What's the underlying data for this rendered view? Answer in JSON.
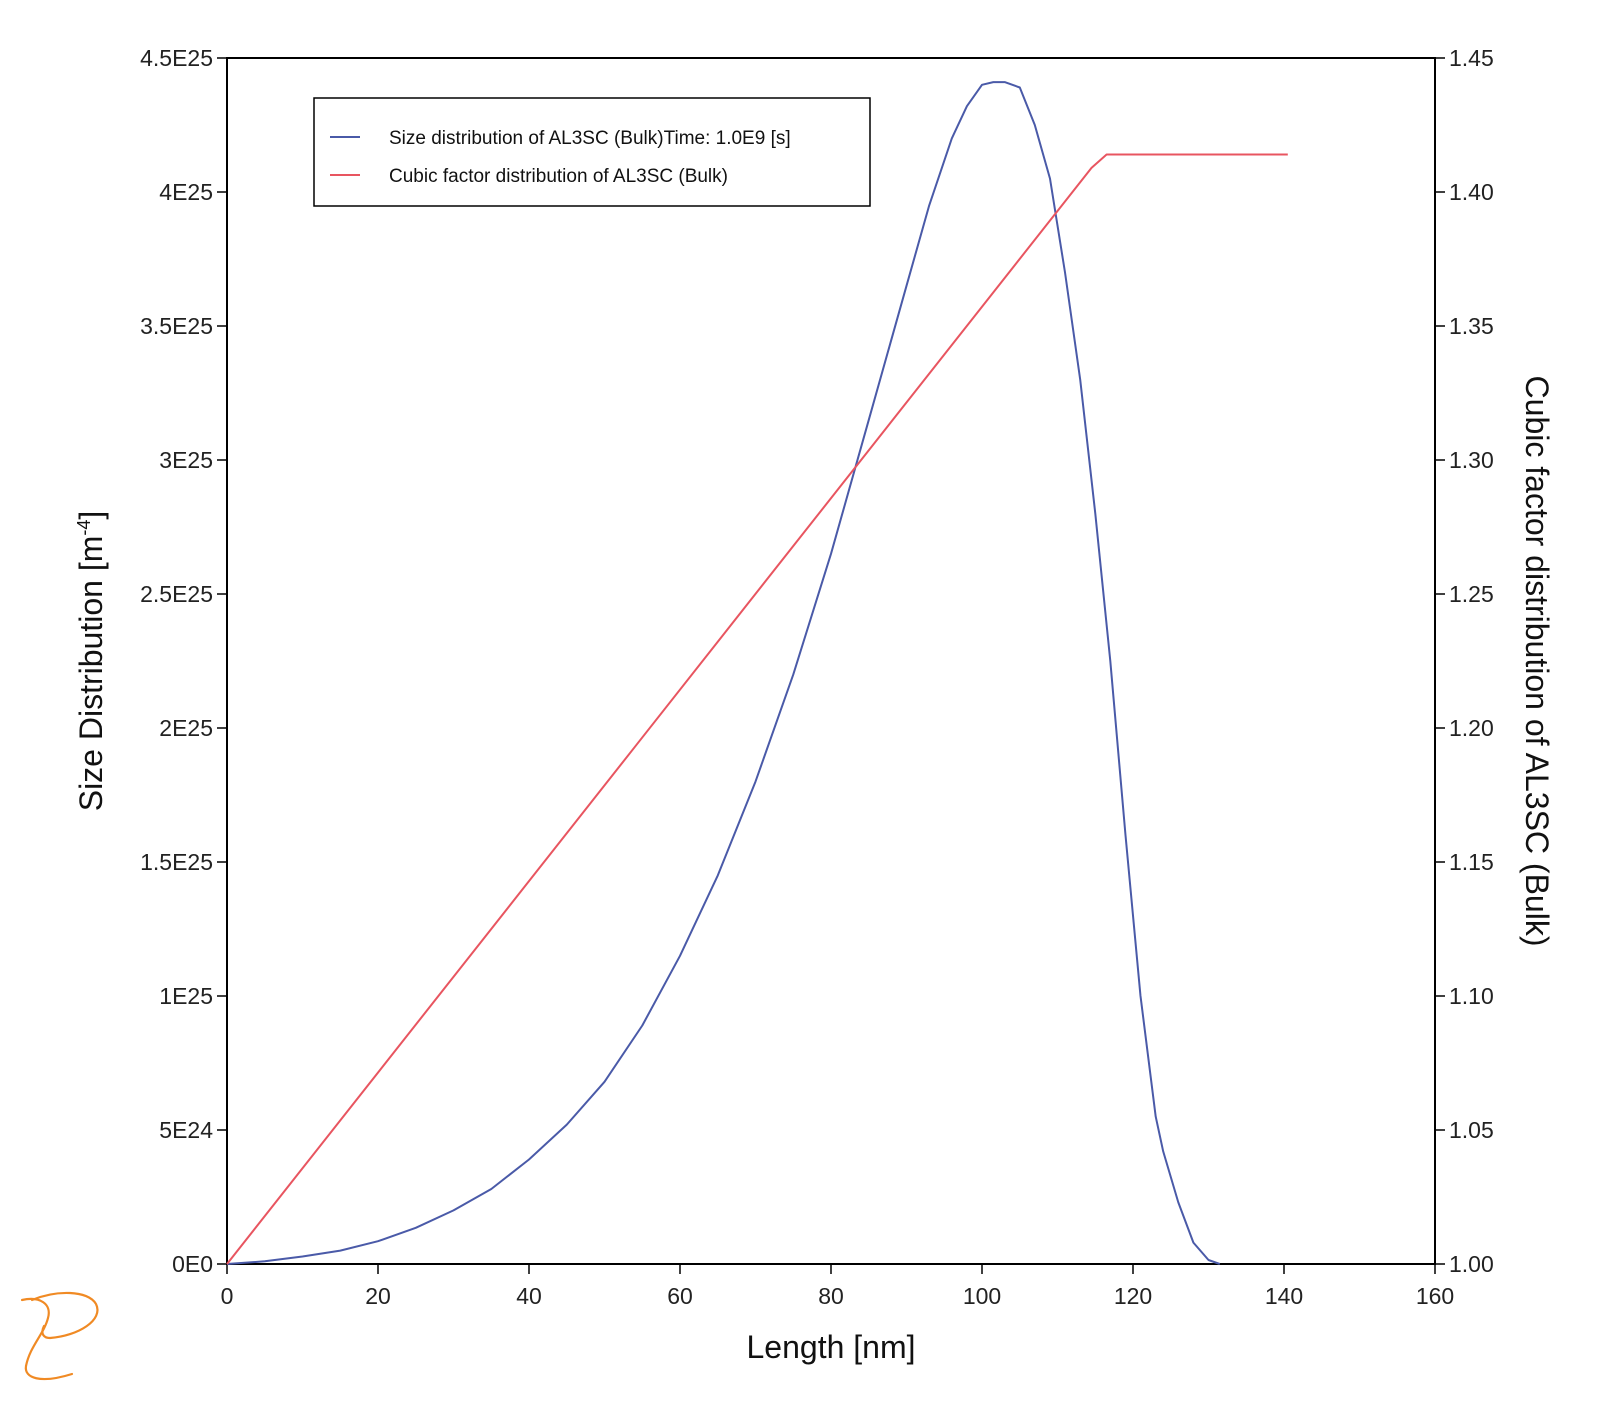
{
  "chart_data": {
    "type": "line",
    "xlabel": "Length [nm]",
    "ylabel": "Size Distribution [m",
    "ylabel_sup": "-4",
    "ylabel_end": "]",
    "y2label": "Cubic factor distribution of AL3SC (Bulk)",
    "xlim": [
      0,
      160
    ],
    "ylim": [
      0,
      4.5e+25
    ],
    "y2lim": [
      1.0,
      1.45
    ],
    "grid": false,
    "legend_position": "top-left",
    "x_ticks": [
      "0",
      "20",
      "40",
      "60",
      "80",
      "100",
      "120",
      "140",
      "160"
    ],
    "y_ticks": [
      "0E0",
      "5E24",
      "1E25",
      "1.5E25",
      "2E25",
      "2.5E25",
      "3E25",
      "3.5E25",
      "4E25",
      "4.5E25"
    ],
    "y2_ticks": [
      "1.00",
      "1.05",
      "1.10",
      "1.15",
      "1.20",
      "1.25",
      "1.30",
      "1.35",
      "1.40",
      "1.45"
    ],
    "series": [
      {
        "name": "Size distribution of AL3SC (Bulk)Time: 1.0E9  [s]",
        "axis": "left",
        "color": "#4a5aa8",
        "x": [
          0,
          5,
          10,
          15,
          20,
          25,
          30,
          35,
          40,
          45,
          50,
          55,
          60,
          65,
          70,
          75,
          80,
          85,
          90,
          93,
          96,
          98,
          100,
          101.5,
          103,
          105,
          107,
          109,
          111,
          113,
          115,
          117,
          119,
          121,
          123,
          124,
          126,
          128,
          130,
          131.5
        ],
        "y": [
          0,
          1e+23,
          2.8e+23,
          5e+23,
          8.5e+23,
          1.35e+24,
          2e+24,
          2.8e+24,
          3.9e+24,
          5.2e+24,
          6.8e+24,
          8.9e+24,
          1.15e+25,
          1.45e+25,
          1.8e+25,
          2.2e+25,
          2.65e+25,
          3.15e+25,
          3.65e+25,
          3.95e+25,
          4.2e+25,
          4.32e+25,
          4.4e+25,
          4.41e+25,
          4.41e+25,
          4.39e+25,
          4.25e+25,
          4.05e+25,
          3.7e+25,
          3.3e+25,
          2.8e+25,
          2.25e+25,
          1.6e+25,
          1e+25,
          5.5e+24,
          4.2e+24,
          2.3e+24,
          8e+23,
          1.5e+23,
          0
        ]
      },
      {
        "name": "Cubic factor distribution of AL3SC (Bulk)",
        "axis": "right",
        "color": "#e85560",
        "x": [
          0,
          114.5,
          116.5,
          140.5
        ],
        "y": [
          1.0,
          1.409,
          1.414,
          1.414
        ]
      }
    ]
  },
  "legend": {
    "items": [
      {
        "label": "Size distribution of AL3SC (Bulk)Time: 1.0E9  [s]",
        "color": "#4a5aa8"
      },
      {
        "label": "Cubic factor distribution of AL3SC (Bulk)",
        "color": "#e85560"
      }
    ]
  },
  "logo": {
    "name": "thermo-calc-logo",
    "color": "#f08a24"
  }
}
